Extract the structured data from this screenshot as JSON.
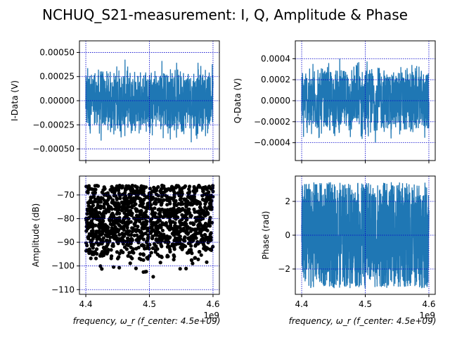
{
  "title": "NCHUQ_S21-measurement: I, Q, Amplitude & Phase",
  "chart_data": [
    {
      "id": "i",
      "type": "line",
      "ylabel": "I-Data (V)",
      "xlabel": "",
      "xlim": [
        4.39,
        4.61
      ],
      "ylim": [
        -0.00062,
        0.00062
      ],
      "xticks": [
        4.4,
        4.5,
        4.6
      ],
      "xtick_labels": [
        "",
        "",
        ""
      ],
      "yticks": [
        -0.0005,
        -0.00025,
        0.0,
        0.00025,
        0.0005
      ],
      "ytick_labels": [
        "−0.00050",
        "−0.00025",
        "0.00000",
        "0.00025",
        "0.00050"
      ],
      "grid": true,
      "color": "#1f77b4",
      "envelope": [
        0.0003,
        0.0005
      ],
      "samples": 900
    },
    {
      "id": "q",
      "type": "line",
      "ylabel": "Q-Data (V)",
      "xlabel": "",
      "xlim": [
        4.39,
        4.61
      ],
      "ylim": [
        -0.00057,
        0.00057
      ],
      "xticks": [
        4.4,
        4.5,
        4.6
      ],
      "xtick_labels": [
        "",
        "",
        ""
      ],
      "yticks": [
        -0.0004,
        -0.0002,
        0.0,
        0.0002,
        0.0004
      ],
      "ytick_labels": [
        "−0.0004",
        "−0.0002",
        "0.0000",
        "0.0002",
        "0.0004"
      ],
      "grid": true,
      "color": "#1f77b4",
      "envelope": [
        0.0003,
        0.00045
      ],
      "samples": 900
    },
    {
      "id": "amp",
      "type": "scatter",
      "ylabel": "Amplitude (dB)",
      "xlabel": "frequency, ω_r (f_center: 4.5e+09)",
      "xlim": [
        4.39,
        4.61
      ],
      "ylim": [
        -112,
        -62
      ],
      "xticks": [
        4.4,
        4.5,
        4.6
      ],
      "xtick_labels": [
        "4.4",
        "4.5",
        "4.6"
      ],
      "x_offset_label": "1e9",
      "yticks": [
        -110,
        -100,
        -90,
        -80,
        -70
      ],
      "ytick_labels": [
        "−110",
        "−100",
        "−90",
        "−80",
        "−70"
      ],
      "grid": true,
      "color": "#000000",
      "band": [
        -90,
        -66
      ],
      "outlier_min": -110,
      "samples": 1400
    },
    {
      "id": "phase",
      "type": "line",
      "ylabel": "Phase (rad)",
      "xlabel": "frequency, ω_r (f_center: 4.5e+09)",
      "xlim": [
        4.39,
        4.61
      ],
      "ylim": [
        -3.5,
        3.5
      ],
      "xticks": [
        4.4,
        4.5,
        4.6
      ],
      "xtick_labels": [
        "4.4",
        "4.5",
        "4.6"
      ],
      "x_offset_label": "1e9",
      "yticks": [
        -2,
        0,
        2
      ],
      "ytick_labels": [
        "−2",
        "0",
        "2"
      ],
      "grid": true,
      "color": "#1f77b4",
      "range": [
        -3.14,
        3.14
      ],
      "samples": 1200
    }
  ]
}
